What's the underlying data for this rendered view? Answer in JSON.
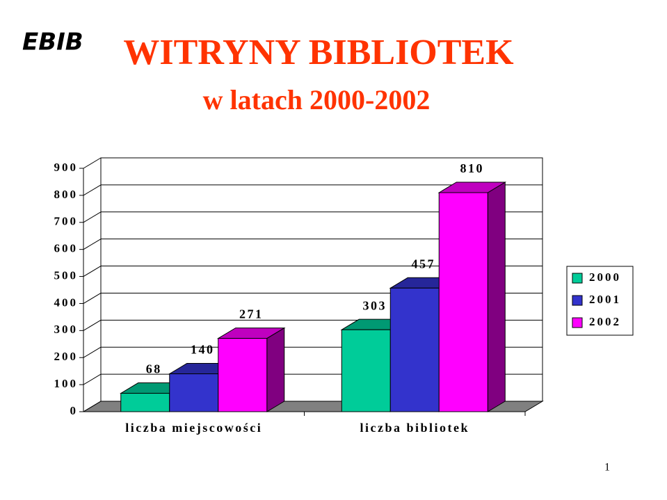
{
  "slide": {
    "logo": "EBIB",
    "page_number": "1"
  },
  "chart_data": {
    "type": "bar3d",
    "title": "WITRYNY BIBLIOTEK",
    "subtitle": "w latach 2000-2002",
    "categories": [
      "liczba miejscowości",
      "liczba bibliotek"
    ],
    "series": [
      {
        "name": "2000",
        "color": "#00cc99",
        "values": [
          68,
          303
        ]
      },
      {
        "name": "2001",
        "color": "#3333cc",
        "values": [
          140,
          457
        ]
      },
      {
        "name": "2002",
        "color": "#ff00ff",
        "values": [
          271,
          810
        ]
      }
    ],
    "ylim": [
      0,
      900
    ],
    "yticks": [
      0,
      100,
      200,
      300,
      400,
      500,
      600,
      700,
      800,
      900
    ],
    "grid": true,
    "legend": "right"
  }
}
